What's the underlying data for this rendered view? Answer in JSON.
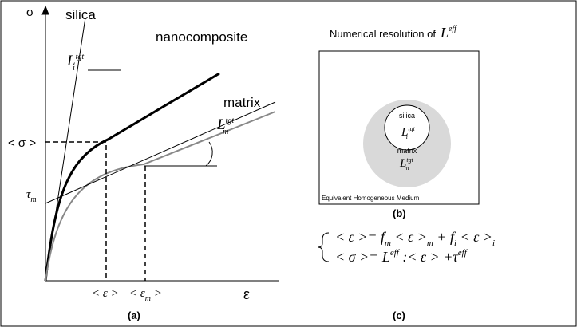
{
  "panel_a": {
    "y_axis": "σ",
    "x_axis": "ε",
    "silica": "silica",
    "nanocomposite": "nanocomposite",
    "matrix": "matrix",
    "tangent_i": {
      "base": "L",
      "sub": "i",
      "sup": "tgt"
    },
    "tangent_m": {
      "base": "L",
      "sub": "m",
      "sup": "tgt"
    },
    "sigma_mean": "< σ >",
    "tau": {
      "base": "τ",
      "sub": "m"
    },
    "eps_mean": "< ε >",
    "eps_m": {
      "base": "< ε",
      "sub": "m",
      "end": " >"
    },
    "caption": "(a)"
  },
  "panel_b": {
    "title": "Numerical resolution of",
    "title_symbol": {
      "base": "L",
      "sup": "eff"
    },
    "inclusion": "silica",
    "inclusion_tangent": {
      "base": "L",
      "sub": "i",
      "sup": "tgt"
    },
    "matrix": "matrix",
    "matrix_tangent": {
      "base": "L",
      "sub": "m",
      "sup": "tgt"
    },
    "medium": "Equivalent Homogeneous Medium",
    "caption": "(b)"
  },
  "panel_c": {
    "equation_1": [
      "< ε >= f",
      "m",
      " < ε >",
      "m",
      " + f",
      "i",
      " < ε >",
      "i"
    ],
    "equation_2": [
      "< σ >= L",
      "eff",
      " :< ε > +τ",
      "eff"
    ],
    "caption": "(c)"
  }
}
